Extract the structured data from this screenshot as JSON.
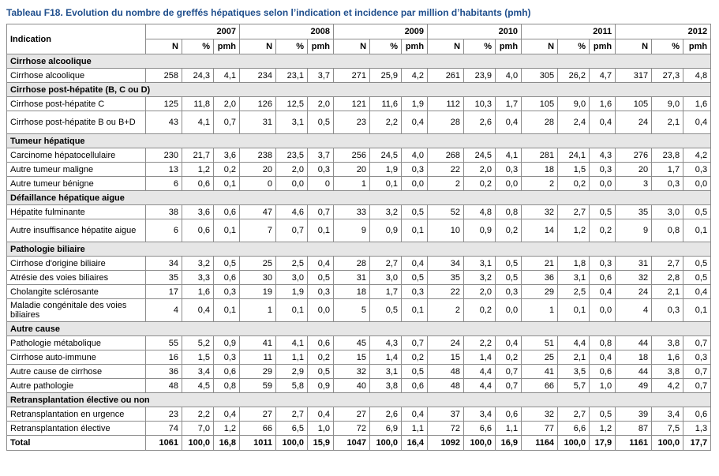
{
  "title": "Tableau F18. Evolution du nombre de greffés hépatiques selon l’indication et incidence par million d’habitants (pmh)",
  "header": {
    "indication": "Indication",
    "years": [
      "2007",
      "2008",
      "2009",
      "2010",
      "2011",
      "2012"
    ],
    "sub": [
      "N",
      "%",
      "pmh"
    ]
  },
  "groups": [
    {
      "name": "Cirrhose alcoolique",
      "rows": [
        {
          "label": "Cirrhose alcoolique",
          "values": [
            "258",
            "24,3",
            "4,1",
            "234",
            "23,1",
            "3,7",
            "271",
            "25,9",
            "4,2",
            "261",
            "23,9",
            "4,0",
            "305",
            "26,2",
            "4,7",
            "317",
            "27,3",
            "4,8"
          ]
        }
      ]
    },
    {
      "name": "Cirrhose post-hépatite (B, C ou D)",
      "rows": [
        {
          "label": "Cirrhose post-hépatite C",
          "values": [
            "125",
            "11,8",
            "2,0",
            "126",
            "12,5",
            "2,0",
            "121",
            "11,6",
            "1,9",
            "112",
            "10,3",
            "1,7",
            "105",
            "9,0",
            "1,6",
            "105",
            "9,0",
            "1,6"
          ]
        },
        {
          "label": "Cirrhose post-hépatite B ou B+D",
          "values": [
            "43",
            "4,1",
            "0,7",
            "31",
            "3,1",
            "0,5",
            "23",
            "2,2",
            "0,4",
            "28",
            "2,6",
            "0,4",
            "28",
            "2,4",
            "0,4",
            "24",
            "2,1",
            "0,4"
          ]
        }
      ]
    },
    {
      "name": "Tumeur hépatique",
      "rows": [
        {
          "label": "Carcinome hépatocellulaire",
          "values": [
            "230",
            "21,7",
            "3,6",
            "238",
            "23,5",
            "3,7",
            "256",
            "24,5",
            "4,0",
            "268",
            "24,5",
            "4,1",
            "281",
            "24,1",
            "4,3",
            "276",
            "23,8",
            "4,2"
          ]
        },
        {
          "label": "Autre tumeur maligne",
          "values": [
            "13",
            "1,2",
            "0,2",
            "20",
            "2,0",
            "0,3",
            "20",
            "1,9",
            "0,3",
            "22",
            "2,0",
            "0,3",
            "18",
            "1,5",
            "0,3",
            "20",
            "1,7",
            "0,3"
          ]
        },
        {
          "label": "Autre tumeur bénigne",
          "values": [
            "6",
            "0,6",
            "0,1",
            "0",
            "0,0",
            "0",
            "1",
            "0,1",
            "0,0",
            "2",
            "0,2",
            "0,0",
            "2",
            "0,2",
            "0,0",
            "3",
            "0,3",
            "0,0"
          ]
        }
      ]
    },
    {
      "name": "Défaillance hépatique aigue",
      "rows": [
        {
          "label": "Hépatite fulminante",
          "values": [
            "38",
            "3,6",
            "0,6",
            "47",
            "4,6",
            "0,7",
            "33",
            "3,2",
            "0,5",
            "52",
            "4,8",
            "0,8",
            "32",
            "2,7",
            "0,5",
            "35",
            "3,0",
            "0,5"
          ]
        },
        {
          "label": "Autre insuffisance hépatite aigue",
          "values": [
            "6",
            "0,6",
            "0,1",
            "7",
            "0,7",
            "0,1",
            "9",
            "0,9",
            "0,1",
            "10",
            "0,9",
            "0,2",
            "14",
            "1,2",
            "0,2",
            "9",
            "0,8",
            "0,1"
          ]
        }
      ]
    },
    {
      "name": "Pathologie biliaire",
      "rows": [
        {
          "label": "Cirrhose d'origine biliaire",
          "values": [
            "34",
            "3,2",
            "0,5",
            "25",
            "2,5",
            "0,4",
            "28",
            "2,7",
            "0,4",
            "34",
            "3,1",
            "0,5",
            "21",
            "1,8",
            "0,3",
            "31",
            "2,7",
            "0,5"
          ]
        },
        {
          "label": "Atrésie des voies biliaires",
          "values": [
            "35",
            "3,3",
            "0,6",
            "30",
            "3,0",
            "0,5",
            "31",
            "3,0",
            "0,5",
            "35",
            "3,2",
            "0,5",
            "36",
            "3,1",
            "0,6",
            "32",
            "2,8",
            "0,5"
          ]
        },
        {
          "label": "Cholangite sclérosante",
          "values": [
            "17",
            "1,6",
            "0,3",
            "19",
            "1,9",
            "0,3",
            "18",
            "1,7",
            "0,3",
            "22",
            "2,0",
            "0,3",
            "29",
            "2,5",
            "0,4",
            "24",
            "2,1",
            "0,4"
          ]
        },
        {
          "label": "Maladie congénitale des voies biliaires",
          "values": [
            "4",
            "0,4",
            "0,1",
            "1",
            "0,1",
            "0,0",
            "5",
            "0,5",
            "0,1",
            "2",
            "0,2",
            "0,0",
            "1",
            "0,1",
            "0,0",
            "4",
            "0,3",
            "0,1"
          ]
        }
      ]
    },
    {
      "name": "Autre cause",
      "rows": [
        {
          "label": "Pathologie métabolique",
          "values": [
            "55",
            "5,2",
            "0,9",
            "41",
            "4,1",
            "0,6",
            "45",
            "4,3",
            "0,7",
            "24",
            "2,2",
            "0,4",
            "51",
            "4,4",
            "0,8",
            "44",
            "3,8",
            "0,7"
          ]
        },
        {
          "label": "Cirrhose auto-immune",
          "values": [
            "16",
            "1,5",
            "0,3",
            "11",
            "1,1",
            "0,2",
            "15",
            "1,4",
            "0,2",
            "15",
            "1,4",
            "0,2",
            "25",
            "2,1",
            "0,4",
            "18",
            "1,6",
            "0,3"
          ]
        },
        {
          "label": "Autre cause de cirrhose",
          "values": [
            "36",
            "3,4",
            "0,6",
            "29",
            "2,9",
            "0,5",
            "32",
            "3,1",
            "0,5",
            "48",
            "4,4",
            "0,7",
            "41",
            "3,5",
            "0,6",
            "44",
            "3,8",
            "0,7"
          ]
        },
        {
          "label": "Autre pathologie",
          "values": [
            "48",
            "4,5",
            "0,8",
            "59",
            "5,8",
            "0,9",
            "40",
            "3,8",
            "0,6",
            "48",
            "4,4",
            "0,7",
            "66",
            "5,7",
            "1,0",
            "49",
            "4,2",
            "0,7"
          ]
        }
      ]
    },
    {
      "name": "Retransplantation élective ou non",
      "rows": [
        {
          "label": "Retransplantation en urgence",
          "values": [
            "23",
            "2,2",
            "0,4",
            "27",
            "2,7",
            "0,4",
            "27",
            "2,6",
            "0,4",
            "37",
            "3,4",
            "0,6",
            "32",
            "2,7",
            "0,5",
            "39",
            "3,4",
            "0,6"
          ]
        },
        {
          "label": "Retransplantation élective",
          "values": [
            "74",
            "7,0",
            "1,2",
            "66",
            "6,5",
            "1,0",
            "72",
            "6,9",
            "1,1",
            "72",
            "6,6",
            "1,1",
            "77",
            "6,6",
            "1,2",
            "87",
            "7,5",
            "1,3"
          ]
        }
      ]
    }
  ],
  "total": {
    "label": "Total",
    "values": [
      "1061",
      "100,0",
      "16,8",
      "1011",
      "100,0",
      "15,9",
      "1047",
      "100,0",
      "16,4",
      "1092",
      "100,0",
      "16,9",
      "1164",
      "100,0",
      "17,9",
      "1161",
      "100,0",
      "17,7"
    ]
  }
}
